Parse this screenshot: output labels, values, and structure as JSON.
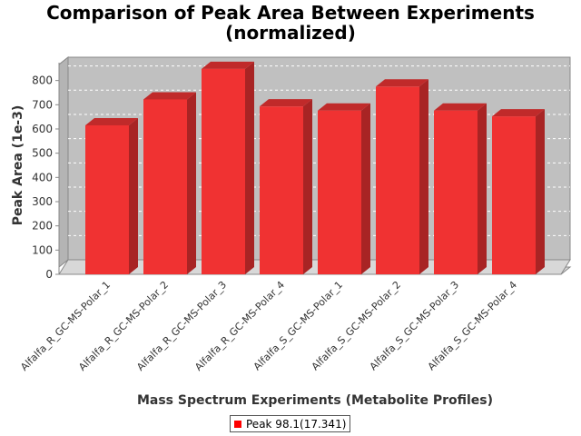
{
  "chart_data": {
    "type": "bar",
    "title": [
      "Comparison of Peak Area Between Experiments",
      "(normalized)"
    ],
    "xlabel": "Mass Spectrum Experiments (Metabolite Profiles)",
    "ylabel": "Peak Area (1e-3)",
    "ylim": [
      0,
      900
    ],
    "yticks": [
      0,
      100,
      200,
      300,
      400,
      500,
      600,
      700,
      800
    ],
    "categories": [
      "Alfalfa_R_GC-MS-Polar_1",
      "Alfalfa_R_GC-MS-Polar_2",
      "Alfalfa_R_GC-MS-Polar_3",
      "Alfalfa_R_GC-MS-Polar_4",
      "Alfalfa_S_GC-MS-Polar_1",
      "Alfalfa_S_GC-MS-Polar_2",
      "Alfalfa_S_GC-MS-Polar_3",
      "Alfalfa_S_GC-MS-Polar_4"
    ],
    "series": [
      {
        "name": "Peak 98.1(17.341)",
        "values": [
          615,
          722,
          848,
          693,
          676,
          775,
          676,
          652
        ]
      }
    ],
    "colors": {
      "bar": "#f03232",
      "bar_side": "#a82424",
      "bar_top": "#c02a2a",
      "plot_bg": "#c0c0c0",
      "floor": "#d8d8d8"
    },
    "grid": true,
    "legend_position": "bottom"
  }
}
